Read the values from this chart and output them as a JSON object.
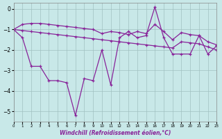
{
  "bg_color": "#c8e8e8",
  "grid_color": "#a0c0c0",
  "line_color": "#882299",
  "x_label": "Windchill (Refroidissement éolien,°C)",
  "xlim": [
    0,
    23
  ],
  "ylim": [
    -5.5,
    0.3
  ],
  "yticks": [
    0,
    -1,
    -2,
    -3,
    -4,
    -5
  ],
  "xticks": [
    0,
    1,
    2,
    3,
    4,
    5,
    6,
    7,
    8,
    9,
    10,
    11,
    12,
    13,
    14,
    15,
    16,
    17,
    18,
    19,
    20,
    21,
    22,
    23
  ],
  "series1": {
    "x": [
      0,
      1,
      2,
      3,
      4,
      5,
      6,
      7,
      8,
      9,
      10,
      11,
      12,
      13,
      14,
      15,
      16,
      17,
      18,
      19,
      20,
      21,
      22,
      23
    ],
    "y": [
      -1.0,
      -1.05,
      -1.1,
      -1.15,
      -1.2,
      -1.25,
      -1.3,
      -1.35,
      -1.4,
      -1.45,
      -1.5,
      -1.55,
      -1.6,
      -1.65,
      -1.7,
      -1.75,
      -1.8,
      -1.85,
      -1.9,
      -1.6,
      -1.65,
      -1.7,
      -1.85,
      -2.0
    ]
  },
  "series2": {
    "x": [
      0,
      1,
      2,
      3,
      4,
      5,
      6,
      7,
      8,
      9,
      10,
      11,
      12,
      13,
      14,
      15,
      16,
      17,
      18,
      19,
      20,
      21,
      22,
      23
    ],
    "y": [
      -1.0,
      -0.75,
      -0.7,
      -0.7,
      -0.75,
      -0.8,
      -0.85,
      -0.9,
      -0.95,
      -1.0,
      -1.2,
      -1.1,
      -1.15,
      -1.25,
      -1.1,
      -1.2,
      -0.75,
      -1.1,
      -1.5,
      -1.15,
      -1.25,
      -1.3,
      -1.6,
      -1.75
    ]
  },
  "series3": {
    "x": [
      0,
      1,
      2,
      3,
      4,
      5,
      6,
      7,
      8,
      9,
      10,
      11,
      12,
      13,
      14,
      15,
      16,
      17,
      18,
      19,
      20,
      21,
      22,
      23
    ],
    "y": [
      -1.0,
      -1.4,
      -2.8,
      -2.8,
      -3.5,
      -3.5,
      -3.6,
      -5.2,
      -3.4,
      -3.5,
      -2.0,
      -3.7,
      -1.4,
      -1.1,
      -1.4,
      -1.3,
      0.1,
      -1.4,
      -2.2,
      -2.2,
      -2.2,
      -1.3,
      -2.2,
      -1.8
    ]
  }
}
